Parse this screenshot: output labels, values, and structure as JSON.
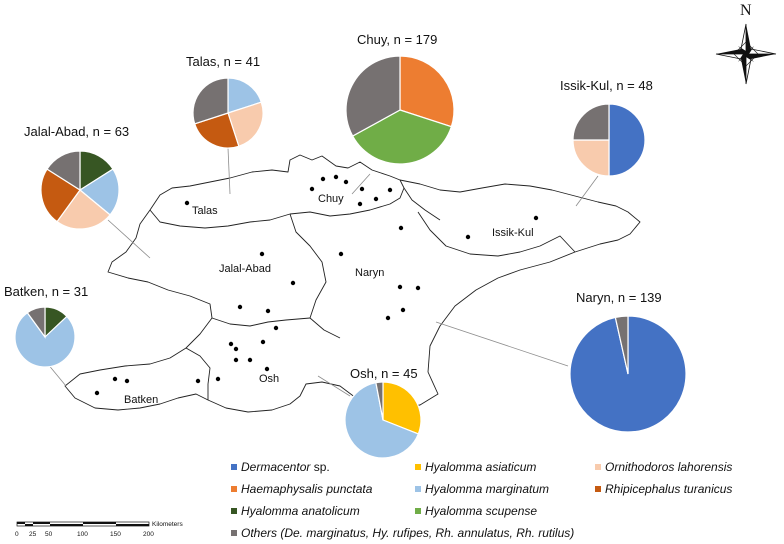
{
  "colors": {
    "dermacentor": "#4472C4",
    "haemaphysalis": "#ED7D31",
    "anatolicum": "#375623",
    "asiaticum": "#FFC000",
    "marginatum": "#9DC3E6",
    "scupense": "#70AD47",
    "ornithodoros": "#F8CBAD",
    "rhipicephalus": "#C55A11",
    "others": "#767171"
  },
  "compass": {
    "north_label": "N",
    "icon": "compass-rose-icon"
  },
  "regions": [
    {
      "key": "talas",
      "label": "Talas"
    },
    {
      "key": "chuy",
      "label": "Chuy"
    },
    {
      "key": "issik",
      "label": "Issik-Kul"
    },
    {
      "key": "jalal",
      "label": "Jalal-Abad"
    },
    {
      "key": "naryn",
      "label": "Naryn"
    },
    {
      "key": "osh",
      "label": "Osh"
    },
    {
      "key": "batken",
      "label": "Batken"
    }
  ],
  "chart_data": {
    "type": "pie",
    "pies": [
      {
        "key": "talas",
        "title": "Talas, n = 41",
        "slices": [
          {
            "species": "marginatum",
            "value": 0.2
          },
          {
            "species": "ornithodoros",
            "value": 0.25
          },
          {
            "species": "rhipicephalus",
            "value": 0.25
          },
          {
            "species": "others",
            "value": 0.3
          }
        ]
      },
      {
        "key": "chuy",
        "title": "Chuy, n = 179",
        "slices": [
          {
            "species": "haemaphysalis",
            "value": 0.3
          },
          {
            "species": "scupense",
            "value": 0.37
          },
          {
            "species": "others",
            "value": 0.33
          }
        ]
      },
      {
        "key": "issik",
        "title": "Issik-Kul, n = 48",
        "slices": [
          {
            "species": "dermacentor",
            "value": 0.5
          },
          {
            "species": "ornithodoros",
            "value": 0.25
          },
          {
            "species": "others",
            "value": 0.25
          }
        ]
      },
      {
        "key": "jalal",
        "title": "Jalal-Abad, n = 63",
        "slices": [
          {
            "species": "anatolicum",
            "value": 0.16
          },
          {
            "species": "marginatum",
            "value": 0.2
          },
          {
            "species": "ornithodoros",
            "value": 0.24
          },
          {
            "species": "rhipicephalus",
            "value": 0.24
          },
          {
            "species": "others",
            "value": 0.16
          }
        ]
      },
      {
        "key": "batken",
        "title": "Batken, n = 31",
        "slices": [
          {
            "species": "anatolicum",
            "value": 0.13
          },
          {
            "species": "marginatum",
            "value": 0.77
          },
          {
            "species": "others",
            "value": 0.1
          }
        ]
      },
      {
        "key": "naryn",
        "title": "Naryn, n = 139",
        "slices": [
          {
            "species": "dermacentor",
            "value": 0.965
          },
          {
            "species": "others",
            "value": 0.035
          }
        ]
      },
      {
        "key": "osh",
        "title": "Osh, n = 45",
        "slices": [
          {
            "species": "asiaticum",
            "value": 0.31
          },
          {
            "species": "marginatum",
            "value": 0.66
          },
          {
            "species": "others",
            "value": 0.03
          }
        ]
      }
    ],
    "legend": [
      {
        "species": "dermacentor",
        "italic": "Dermacentor",
        "plain": " sp."
      },
      {
        "species": "asiaticum",
        "italic": "Hyalomma asiaticum",
        "plain": ""
      },
      {
        "species": "ornithodoros",
        "italic": "Ornithodoros lahorensis",
        "plain": ""
      },
      {
        "species": "haemaphysalis",
        "italic": "Haemaphysalis punctata",
        "plain": ""
      },
      {
        "species": "marginatum",
        "italic": "Hyalomma marginatum",
        "plain": ""
      },
      {
        "species": "rhipicephalus",
        "italic": "Rhipicephalus turanicus",
        "plain": ""
      },
      {
        "species": "anatolicum",
        "italic": "Hyalomma anatolicum",
        "plain": ""
      },
      {
        "species": "scupense",
        "italic": "Hyalomma scupense",
        "plain": ""
      },
      {
        "species": "others",
        "italic": "Others (De. marginatus, Hy. rufipes, Rh. annulatus, Rh. rutilus)",
        "plain": ""
      }
    ]
  },
  "scale_bar": {
    "unit": "Kilometers",
    "ticks": [
      "0",
      "25",
      "50",
      "100",
      "150",
      "200"
    ]
  }
}
